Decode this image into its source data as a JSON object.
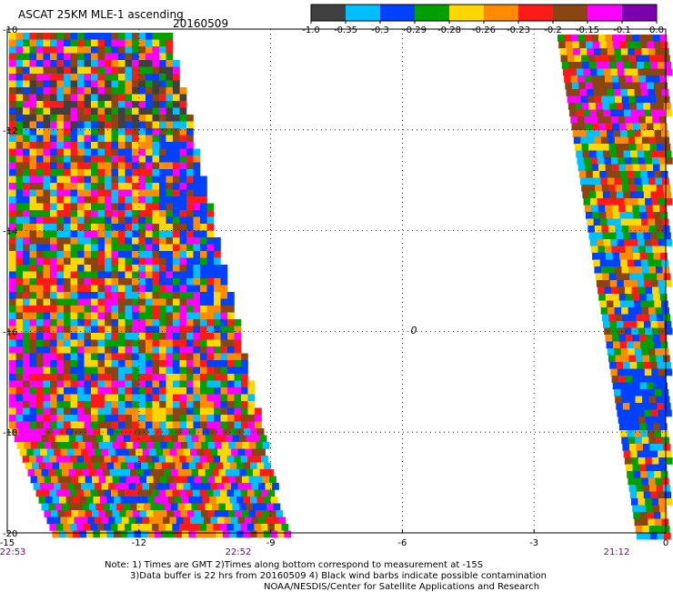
{
  "header": {
    "title": "ASCAT 25KM MLE-1 ascending",
    "date": "20160509"
  },
  "colorbar": {
    "tick_labels": [
      "-1.0",
      "-0.35",
      "-0.3",
      "-0.29",
      "-0.28",
      "-0.26",
      "-0.23",
      "-0.2",
      "-0.15",
      "-0.1",
      "0.0"
    ],
    "colors": [
      "#404040",
      "#00bfff",
      "#0040ff",
      "#00a000",
      "#ffd700",
      "#ff8c00",
      "#ff1a1a",
      "#8b4513",
      "#ff00ff",
      "#7b00b0"
    ]
  },
  "map": {
    "lon_range": [
      -15,
      0
    ],
    "lat_range": [
      -20,
      -10
    ],
    "lon_ticks": [
      "-15",
      "-12",
      "-9",
      "-6",
      "-3",
      "0"
    ],
    "lat_ticks": [
      "-10",
      "-12",
      "-14",
      "-16",
      "-18",
      "-20"
    ],
    "grid": "dotted",
    "center_marker": "0",
    "swath_times": [
      "22:53",
      "22:52",
      "21:12"
    ],
    "time_color": "#800080"
  },
  "notes": {
    "line1": "Note: 1) Times are GMT 2)Times along bottom correspond to measurement at -15S",
    "line2": "3)Data buffer is 22 hrs from 20160509 4) Black wind barbs indicate possible contamination",
    "line3": "NOAA/NESDIS/Center for Satellite Applications and Research"
  }
}
